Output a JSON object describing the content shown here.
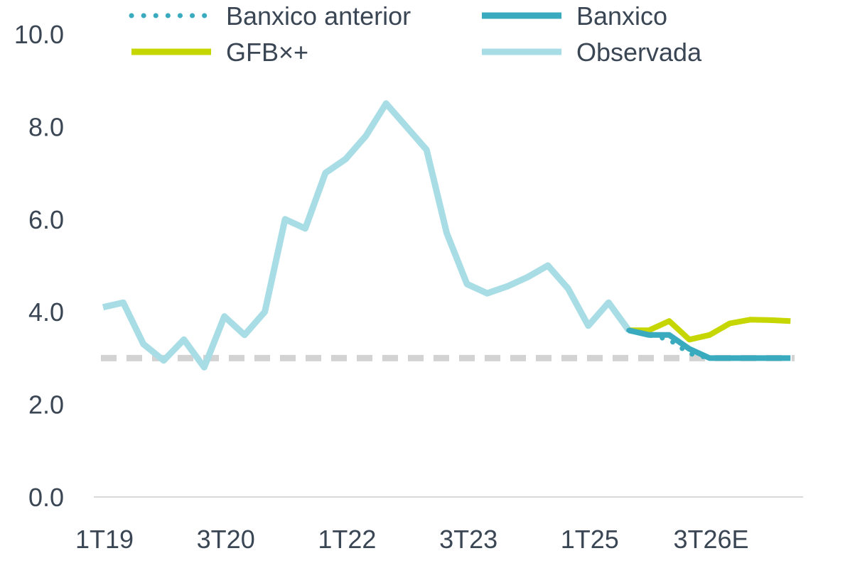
{
  "chart_data": {
    "type": "line",
    "x": [
      "1T19",
      "2T19",
      "3T19",
      "4T19",
      "1T20",
      "2T20",
      "3T20",
      "4T20",
      "1T21",
      "2T21",
      "3T21",
      "4T21",
      "1T22",
      "2T22",
      "3T22",
      "4T22",
      "1T23",
      "2T23",
      "3T23",
      "4T23",
      "1T24",
      "2T24",
      "3T24",
      "4T24",
      "1T25",
      "2T25",
      "3T25",
      "4T25",
      "1T26",
      "2T26",
      "3T26E",
      "4T26E",
      "1T27E",
      "2T27E",
      "3T27E"
    ],
    "xticks": [
      "1T19",
      "3T20",
      "1T22",
      "3T23",
      "1T25",
      "3T26E"
    ],
    "yticks": [
      0.0,
      2.0,
      4.0,
      6.0,
      8.0,
      10.0
    ],
    "ylim": [
      0,
      10
    ],
    "title": "",
    "xlabel": "",
    "ylabel": "",
    "grid": false,
    "legend_position": "top",
    "target_line": {
      "value": 3.0,
      "color": "#d3d3d3",
      "style": "dashed"
    },
    "series": [
      {
        "name": "Observada",
        "color": "#a8dde6",
        "style": "solid",
        "values": [
          4.1,
          4.2,
          3.3,
          2.95,
          3.4,
          2.8,
          3.9,
          3.5,
          4.0,
          6.0,
          5.8,
          7.0,
          7.3,
          7.8,
          8.5,
          8.0,
          7.5,
          5.7,
          4.6,
          4.4,
          4.55,
          4.75,
          5.0,
          4.5,
          3.7,
          4.2,
          3.6,
          null,
          null,
          null,
          null,
          null,
          null,
          null,
          null
        ]
      },
      {
        "name": "Banxico anterior",
        "color": "#3aabbf",
        "style": "dotted",
        "values": [
          null,
          null,
          null,
          null,
          null,
          null,
          null,
          null,
          null,
          null,
          null,
          null,
          null,
          null,
          null,
          null,
          null,
          null,
          null,
          null,
          null,
          null,
          null,
          null,
          null,
          null,
          3.6,
          3.5,
          3.4,
          3.1,
          3.0,
          3.0,
          3.0,
          3.0,
          3.0
        ]
      },
      {
        "name": "Banxico",
        "color": "#3aabbf",
        "style": "solid",
        "values": [
          null,
          null,
          null,
          null,
          null,
          null,
          null,
          null,
          null,
          null,
          null,
          null,
          null,
          null,
          null,
          null,
          null,
          null,
          null,
          null,
          null,
          null,
          null,
          null,
          null,
          null,
          3.6,
          3.5,
          3.5,
          3.2,
          3.0,
          3.0,
          3.0,
          3.0,
          3.0
        ]
      },
      {
        "name": "GFB×+",
        "color": "#c6d600",
        "style": "solid",
        "values": [
          null,
          null,
          null,
          null,
          null,
          null,
          null,
          null,
          null,
          null,
          null,
          null,
          null,
          null,
          null,
          null,
          null,
          null,
          null,
          null,
          null,
          null,
          null,
          null,
          null,
          null,
          3.6,
          3.6,
          3.8,
          3.4,
          3.5,
          3.75,
          3.83,
          3.82,
          3.8
        ]
      }
    ]
  }
}
